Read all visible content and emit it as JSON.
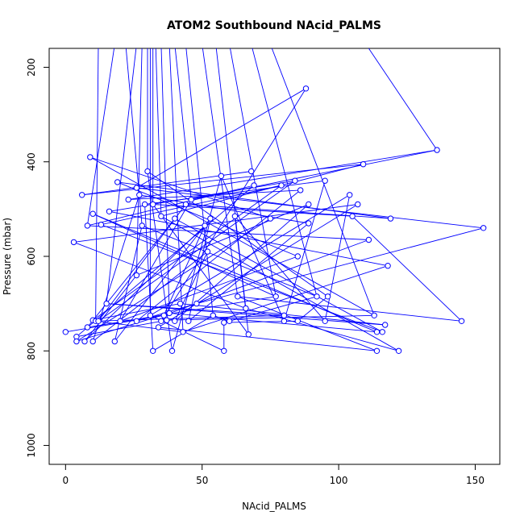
{
  "chart_data": {
    "type": "line",
    "title": "ATOM2 Southbound NAcid_PALMS",
    "xlabel": "NAcid_PALMS",
    "ylabel": "Pressure (mbar)",
    "xlim": [
      -6,
      159
    ],
    "ylim": [
      1040,
      160
    ],
    "y_reversed": true,
    "xticks": [
      0,
      50,
      100,
      150
    ],
    "yticks": [
      200,
      400,
      600,
      800,
      1000
    ],
    "color": "#0000ff",
    "marker": "open-circle",
    "grid": false,
    "series": [
      {
        "points": [
          [
            0,
            760
          ],
          [
            4,
            770
          ],
          [
            4,
            780
          ],
          [
            8,
            750
          ],
          [
            10,
            735
          ],
          [
            11,
            737
          ],
          [
            12,
            737
          ],
          [
            20,
            737
          ],
          [
            26,
            737
          ],
          [
            35,
            737
          ],
          [
            40,
            737
          ],
          [
            45,
            737
          ],
          [
            60,
            737
          ],
          [
            80,
            737
          ],
          [
            85,
            737
          ],
          [
            95,
            737
          ],
          [
            145,
            737
          ],
          [
            3,
            570
          ],
          [
            6,
            470
          ],
          [
            8,
            535
          ],
          [
            9,
            390
          ],
          [
            10,
            510
          ],
          [
            13,
            533
          ],
          [
            15,
            700
          ],
          [
            16,
            505
          ],
          [
            19,
            443
          ],
          [
            23,
            480
          ],
          [
            26,
            455
          ],
          [
            26,
            640
          ],
          [
            27,
            470
          ],
          [
            28,
            535
          ],
          [
            29,
            490
          ],
          [
            30,
            420
          ],
          [
            31,
            725
          ],
          [
            32,
            490
          ],
          [
            34,
            750
          ],
          [
            35,
            515
          ],
          [
            36,
            725
          ],
          [
            37,
            735
          ],
          [
            38,
            720
          ],
          [
            40,
            520
          ],
          [
            42,
            700
          ],
          [
            43,
            760
          ],
          [
            44,
            490
          ],
          [
            46,
            480
          ],
          [
            48,
            700
          ],
          [
            51,
            535
          ],
          [
            52,
            590
          ],
          [
            53,
            520
          ],
          [
            54,
            725
          ],
          [
            57,
            430
          ],
          [
            58,
            740
          ],
          [
            62,
            515
          ],
          [
            63,
            685
          ],
          [
            66,
            710
          ],
          [
            68,
            420
          ],
          [
            69,
            450
          ],
          [
            75,
            520
          ],
          [
            77,
            685
          ],
          [
            79,
            450
          ],
          [
            80,
            725
          ],
          [
            84,
            440
          ],
          [
            85,
            600
          ],
          [
            86,
            460
          ],
          [
            88,
            245
          ],
          [
            89,
            490
          ],
          [
            89,
            530
          ],
          [
            92,
            685
          ],
          [
            95,
            440
          ],
          [
            96,
            685
          ],
          [
            104,
            470
          ],
          [
            105,
            515
          ],
          [
            107,
            490
          ],
          [
            109,
            405
          ],
          [
            111,
            565
          ],
          [
            113,
            725
          ],
          [
            114,
            760
          ],
          [
            116,
            760
          ],
          [
            117,
            745
          ],
          [
            118,
            620
          ],
          [
            119,
            520
          ],
          [
            136,
            375
          ],
          [
            153,
            540
          ],
          [
            7,
            780
          ],
          [
            10,
            780
          ],
          [
            18,
            780
          ],
          [
            32,
            800
          ],
          [
            39,
            800
          ],
          [
            58,
            800
          ],
          [
            67,
            765
          ],
          [
            114,
            800
          ],
          [
            122,
            800
          ]
        ]
      }
    ]
  }
}
